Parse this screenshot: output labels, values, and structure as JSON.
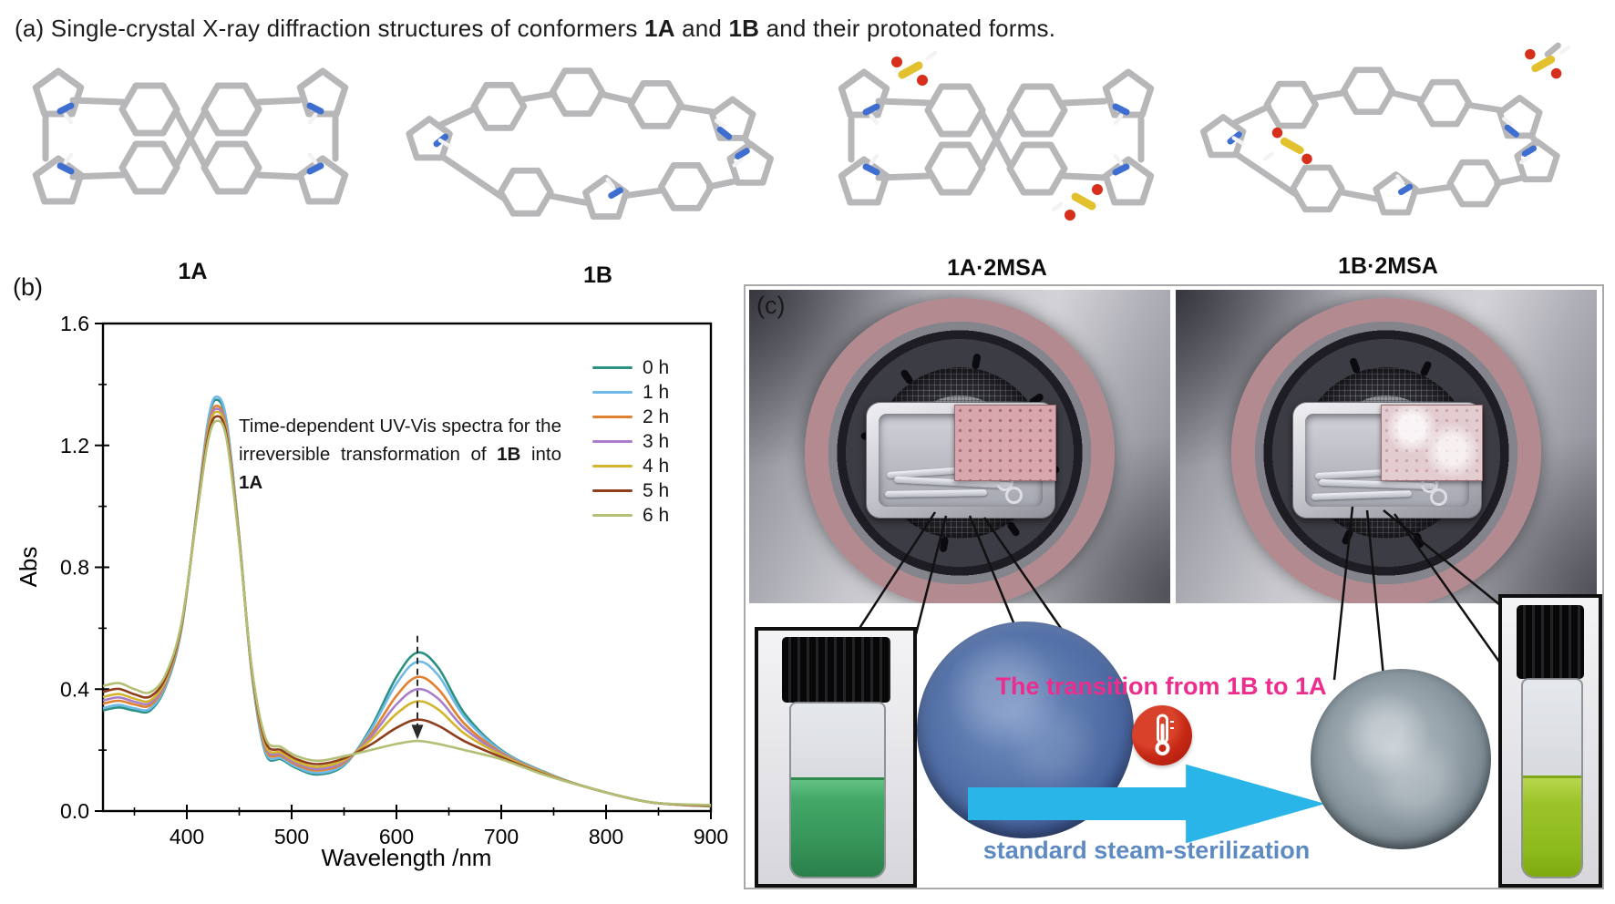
{
  "title_a": {
    "prefix": "(a) Single-crystal X-ray diffraction structures of conformers ",
    "bold1": "1A",
    "mid": " and ",
    "bold2": "1B",
    "suffix": " and their protonated forms."
  },
  "molecules": {
    "labels": [
      "1A",
      "1B",
      "1A·2MSA",
      "1B·2MSA"
    ],
    "atom_colors": {
      "carbon": "#b7b7b9",
      "nitrogen": "#3e6fd0",
      "hydrogen": "#f3f3f5",
      "sulfur": "#e2c02e",
      "oxygen": "#d6301c"
    }
  },
  "panel_b": {
    "label": "(b)",
    "ylabel": "Abs",
    "xlabel": "Wavelength /nm",
    "annotation": {
      "part1": "Time-dependent UV-Vis spectra for the irreversible transformation of ",
      "bold1": "1B",
      "mid": " into ",
      "bold2": "1A"
    }
  },
  "chart_data": {
    "type": "line",
    "title": "",
    "xlabel": "Wavelength /nm",
    "ylabel": "Abs",
    "x_range": [
      320,
      900
    ],
    "y_range": [
      0,
      1.6
    ],
    "x_ticks": [
      400,
      500,
      600,
      700,
      800,
      900
    ],
    "x_minor_ticks": [
      350,
      450,
      550,
      650,
      750,
      850
    ],
    "y_ticks": [
      0,
      0.4,
      0.8,
      1.2,
      1.6
    ],
    "y_tick_labels": [
      "0.0",
      "0.4",
      "0.8",
      "1.2",
      "1.6"
    ],
    "y_minor_ticks": [
      0.2,
      0.6,
      1.0,
      1.4
    ],
    "grid": false,
    "legend_position": "top-right",
    "x": [
      320,
      335,
      350,
      365,
      380,
      395,
      410,
      420,
      428,
      438,
      450,
      462,
      475,
      490,
      505,
      525,
      550,
      575,
      600,
      620,
      640,
      665,
      700,
      740,
      780,
      840,
      900
    ],
    "series": [
      {
        "name": "0 h",
        "color": "#2b9183",
        "values": [
          0.33,
          0.34,
          0.33,
          0.33,
          0.41,
          0.6,
          1.0,
          1.27,
          1.35,
          1.27,
          0.9,
          0.45,
          0.19,
          0.17,
          0.14,
          0.12,
          0.15,
          0.27,
          0.44,
          0.52,
          0.47,
          0.32,
          0.2,
          0.13,
          0.08,
          0.03,
          0.015
        ]
      },
      {
        "name": "1 h",
        "color": "#6fb9e8",
        "values": [
          0.338,
          0.348,
          0.337,
          0.336,
          0.414,
          0.602,
          0.998,
          1.276,
          1.36,
          1.28,
          0.898,
          0.452,
          0.195,
          0.174,
          0.144,
          0.125,
          0.153,
          0.263,
          0.418,
          0.49,
          0.445,
          0.308,
          0.197,
          0.129,
          0.08,
          0.03,
          0.016
        ]
      },
      {
        "name": "2 h",
        "color": "#e0812f",
        "values": [
          0.352,
          0.362,
          0.35,
          0.347,
          0.421,
          0.606,
          0.994,
          1.253,
          1.33,
          1.256,
          0.894,
          0.456,
          0.204,
          0.181,
          0.151,
          0.133,
          0.158,
          0.25,
          0.378,
          0.44,
          0.4,
          0.286,
          0.192,
          0.127,
          0.08,
          0.03,
          0.016
        ]
      },
      {
        "name": "3 h",
        "color": "#a97fc9",
        "values": [
          0.363,
          0.373,
          0.359,
          0.355,
          0.426,
          0.608,
          0.992,
          1.245,
          1.32,
          1.249,
          0.892,
          0.458,
          0.211,
          0.186,
          0.156,
          0.138,
          0.162,
          0.241,
          0.35,
          0.4,
          0.368,
          0.271,
          0.188,
          0.126,
          0.08,
          0.03,
          0.017
        ]
      },
      {
        "name": "4 h",
        "color": "#d3b42c",
        "values": [
          0.374,
          0.384,
          0.369,
          0.363,
          0.432,
          0.611,
          0.989,
          1.237,
          1.31,
          1.242,
          0.889,
          0.461,
          0.218,
          0.192,
          0.162,
          0.145,
          0.167,
          0.232,
          0.319,
          0.36,
          0.333,
          0.254,
          0.184,
          0.125,
          0.08,
          0.03,
          0.017
        ]
      },
      {
        "name": "5 h",
        "color": "#8f3f1d",
        "values": [
          0.391,
          0.401,
          0.383,
          0.376,
          0.44,
          0.615,
          0.985,
          1.224,
          1.295,
          1.232,
          0.885,
          0.465,
          0.228,
          0.2,
          0.17,
          0.154,
          0.173,
          0.217,
          0.273,
          0.3,
          0.28,
          0.229,
          0.177,
          0.122,
          0.08,
          0.03,
          0.018
        ]
      },
      {
        "name": "6 h",
        "color": "#b2bf74",
        "values": [
          0.41,
          0.42,
          0.4,
          0.39,
          0.45,
          0.62,
          0.98,
          1.21,
          1.28,
          1.22,
          0.88,
          0.47,
          0.24,
          0.21,
          0.18,
          0.165,
          0.18,
          0.2,
          0.22,
          0.23,
          0.22,
          0.2,
          0.17,
          0.12,
          0.08,
          0.03,
          0.02
        ]
      }
    ],
    "annotation_arrow": {
      "x": 620,
      "y_from": 0.575,
      "y_to": 0.235,
      "direction": "down",
      "style": "dashed"
    }
  },
  "panel_c": {
    "label": "(c)",
    "transition_text": "The transition from 1B to 1A",
    "sterilization_text": "standard steam-sterilization",
    "colors": {
      "transition_text": "#ed2d8e",
      "sterilization_text": "#5e8ac2",
      "arrow": "#2ab5e8",
      "thermometer_badge": "#c62815",
      "vial_left_liquid": "#3f9e5f",
      "vial_right_liquid": "#8cb91c",
      "disc_left": "#4a67a0",
      "disc_right": "#7d8b94",
      "gasket_ring": "#b28a90"
    }
  }
}
